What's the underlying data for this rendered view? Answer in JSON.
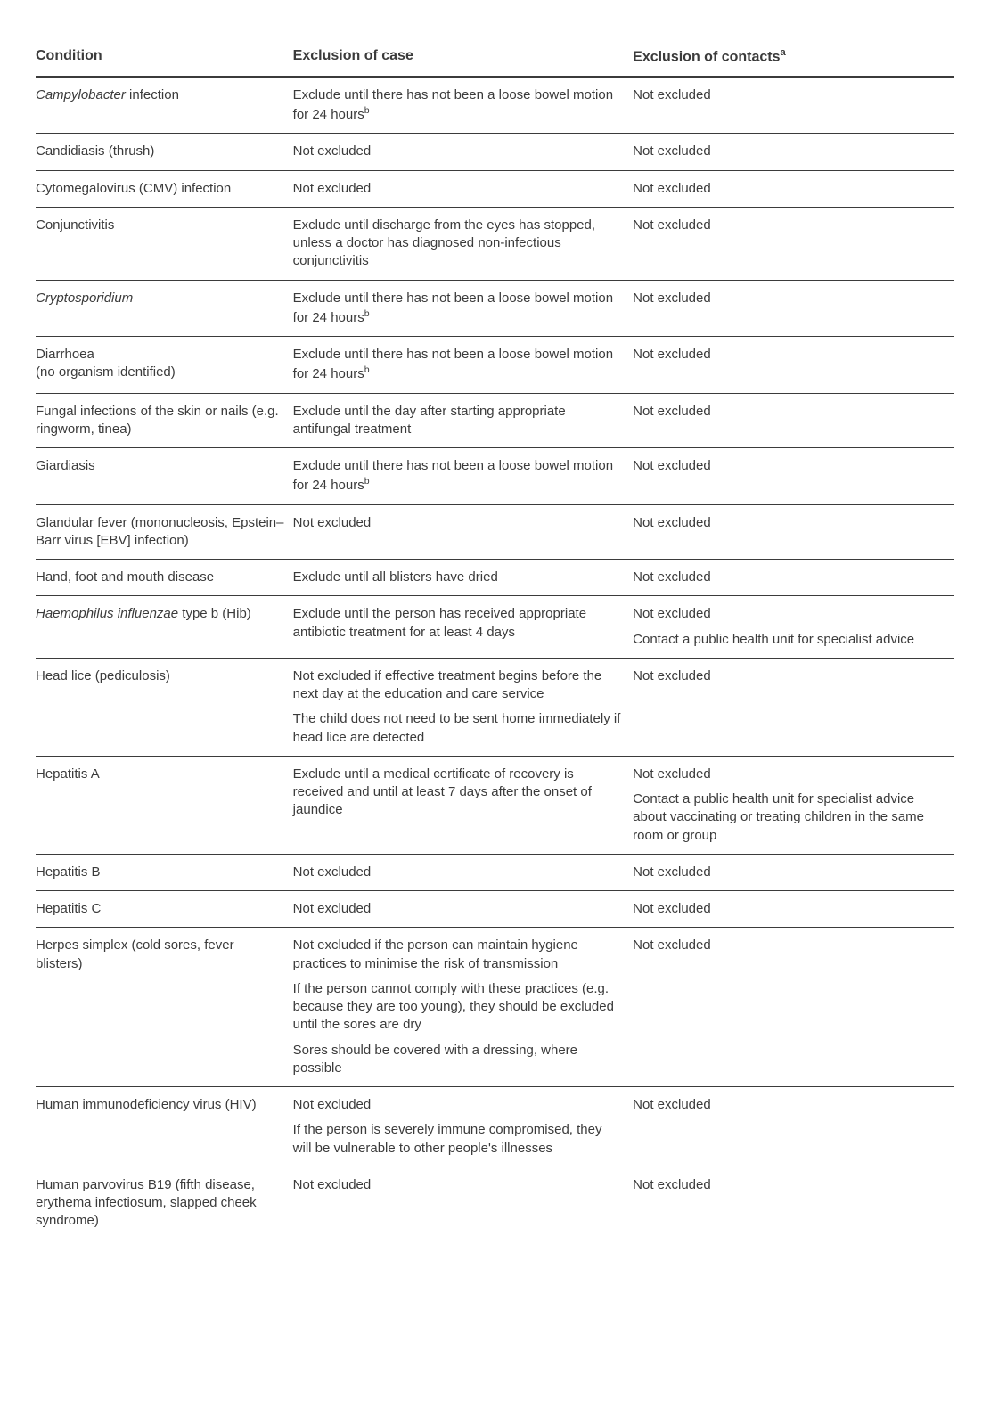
{
  "headers": {
    "condition": "Condition",
    "case": "Exclusion of case",
    "contacts": "Exclusion of contacts",
    "contacts_fn": "a"
  },
  "rows": [
    {
      "condition": {
        "italic": "Campylobacter",
        "rest": " infection"
      },
      "case": [
        {
          "text": "Exclude until there has not been a loose bowel motion for 24 hours",
          "fn": "b"
        }
      ],
      "contacts": [
        {
          "text": "Not excluded"
        }
      ]
    },
    {
      "condition": {
        "plain": "Candidiasis (thrush)"
      },
      "case": [
        {
          "text": "Not excluded"
        }
      ],
      "contacts": [
        {
          "text": "Not excluded"
        }
      ]
    },
    {
      "condition": {
        "plain": "Cytomegalovirus (CMV) infection"
      },
      "case": [
        {
          "text": "Not excluded"
        }
      ],
      "contacts": [
        {
          "text": "Not excluded"
        }
      ]
    },
    {
      "condition": {
        "plain": "Conjunctivitis"
      },
      "case": [
        {
          "text": "Exclude until discharge from the eyes has stopped, unless a doctor has diagnosed non-infectious conjunctivitis"
        }
      ],
      "contacts": [
        {
          "text": "Not excluded"
        }
      ]
    },
    {
      "condition": {
        "italic": "Cryptosporidium"
      },
      "case": [
        {
          "text": "Exclude until there has not been a loose bowel motion for 24 hours",
          "fn": "b"
        }
      ],
      "contacts": [
        {
          "text": "Not excluded"
        }
      ]
    },
    {
      "condition": {
        "lines": [
          "Diarrhoea",
          "(no organism identified)"
        ]
      },
      "case": [
        {
          "text": "Exclude until there has not been a loose bowel motion for 24 hours",
          "fn": "b"
        }
      ],
      "contacts": [
        {
          "text": "Not excluded"
        }
      ]
    },
    {
      "condition": {
        "plain": "Fungal infections of the skin or nails (e.g. ringworm, tinea)"
      },
      "case": [
        {
          "text": "Exclude until the day after starting appropriate antifungal treatment"
        }
      ],
      "contacts": [
        {
          "text": "Not excluded"
        }
      ]
    },
    {
      "condition": {
        "plain": "Giardiasis"
      },
      "case": [
        {
          "text": "Exclude until there has not been a loose bowel motion for 24 hours",
          "fn": "b"
        }
      ],
      "contacts": [
        {
          "text": "Not excluded"
        }
      ]
    },
    {
      "condition": {
        "plain": "Glandular fever (mononucleosis, Epstein–Barr virus [EBV] infection)"
      },
      "case": [
        {
          "text": "Not excluded"
        }
      ],
      "contacts": [
        {
          "text": "Not excluded"
        }
      ]
    },
    {
      "condition": {
        "plain": "Hand, foot and mouth disease"
      },
      "case": [
        {
          "text": "Exclude until all blisters have dried"
        }
      ],
      "contacts": [
        {
          "text": "Not excluded"
        }
      ]
    },
    {
      "condition": {
        "italic": "Haemophilus influenzae",
        "rest": " type b (Hib)"
      },
      "case": [
        {
          "text": "Exclude until the person has received appropriate antibiotic treatment for at least 4 days"
        }
      ],
      "contacts": [
        {
          "text": "Not excluded"
        },
        {
          "text": "Contact a public health unit for specialist advice"
        }
      ]
    },
    {
      "condition": {
        "plain": "Head lice (pediculosis)"
      },
      "case": [
        {
          "text": "Not excluded if effective treatment begins before the next day at the education and care service"
        },
        {
          "text": "The child does not need to be sent home immediately if head lice are detected"
        }
      ],
      "contacts": [
        {
          "text": "Not excluded"
        }
      ]
    },
    {
      "condition": {
        "plain": "Hepatitis A"
      },
      "case": [
        {
          "text": "Exclude until a medical certificate of recovery is received and until at least 7 days after the onset of jaundice"
        }
      ],
      "contacts": [
        {
          "text": "Not excluded"
        },
        {
          "text": "Contact a public health unit for specialist advice about vaccinating or treating children in the same room or group"
        }
      ]
    },
    {
      "condition": {
        "plain": "Hepatitis B"
      },
      "case": [
        {
          "text": "Not excluded"
        }
      ],
      "contacts": [
        {
          "text": "Not excluded"
        }
      ]
    },
    {
      "condition": {
        "plain": "Hepatitis C"
      },
      "case": [
        {
          "text": "Not excluded"
        }
      ],
      "contacts": [
        {
          "text": "Not excluded"
        }
      ]
    },
    {
      "condition": {
        "plain": "Herpes simplex (cold sores, fever blisters)"
      },
      "case": [
        {
          "text": "Not excluded if the person can maintain hygiene practices to minimise the risk of transmission"
        },
        {
          "text": "If the person cannot comply with these practices (e.g. because they are too young), they should be excluded until the sores are dry"
        },
        {
          "text": "Sores should be covered with a dressing, where possible"
        }
      ],
      "contacts": [
        {
          "text": "Not excluded"
        }
      ]
    },
    {
      "condition": {
        "plain": "Human immunodeficiency virus (HIV)"
      },
      "case": [
        {
          "text": "Not excluded"
        },
        {
          "text": "If the person is severely immune compromised, they will be vulnerable to other people's illnesses"
        }
      ],
      "contacts": [
        {
          "text": "Not excluded"
        }
      ]
    },
    {
      "condition": {
        "plain": "Human parvovirus B19 (fifth disease, erythema infectiosum, slapped cheek syndrome)"
      },
      "case": [
        {
          "text": "Not excluded"
        }
      ],
      "contacts": [
        {
          "text": "Not excluded"
        }
      ]
    }
  ]
}
